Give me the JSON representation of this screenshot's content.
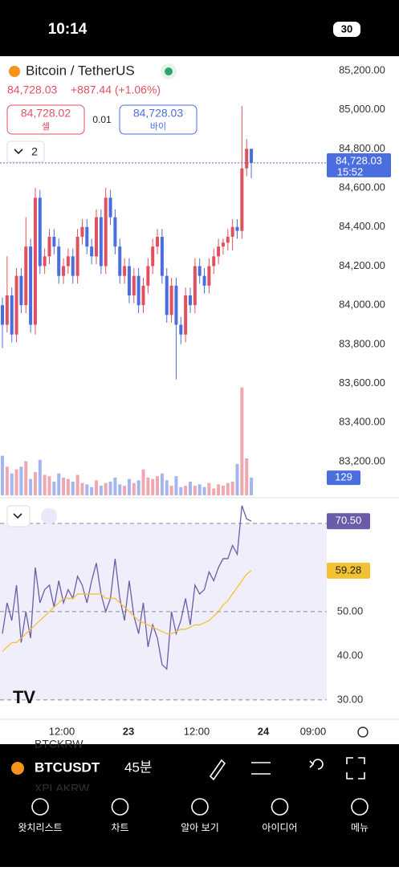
{
  "status": {
    "time": "10:14",
    "battery": "30"
  },
  "header": {
    "symbol": "Bitcoin / TetherUS",
    "price": "84,728.03",
    "change": "+887.44 (+1.06%)"
  },
  "order": {
    "sell_price": "84,728.02",
    "sell_label": "셀",
    "spread": "0.01",
    "buy_price": "84,728.03",
    "buy_label": "바이"
  },
  "indicator_count": "2",
  "time_labels": [
    "12:00",
    "23",
    "12:00",
    "24",
    "09:00"
  ],
  "toolbar": {
    "symbol": "BTCUSDT",
    "interval": "45분",
    "ghost_1": "BTCKRW",
    "ghost_2": "XPLAKRW"
  },
  "tabs": [
    "왓치리스트",
    "차트",
    "알아 보기",
    "아이디어",
    "메뉴"
  ],
  "chart_data": [
    {
      "type": "candlestick",
      "up_color": "#e0515f",
      "down_color": "#4a6ee0",
      "ylim": [
        83015,
        85274
      ],
      "yticks": [
        {
          "value": 83200,
          "label": "83,200.00"
        },
        {
          "value": 83400,
          "label": "83,400.00"
        },
        {
          "value": 83600,
          "label": "83,600.00"
        },
        {
          "value": 83800,
          "label": "83,800.00"
        },
        {
          "value": 84000,
          "label": "84,000.00"
        },
        {
          "value": 84200,
          "label": "84,200.00"
        },
        {
          "value": 84400,
          "label": "84,400.00"
        },
        {
          "value": 84600,
          "label": "84,600.00"
        },
        {
          "value": 84800,
          "label": "84,800.00"
        },
        {
          "value": 85000,
          "label": "85,000.00"
        },
        {
          "value": 85200,
          "label": "85,200.00"
        }
      ],
      "open": [
        84000,
        83900,
        84050,
        83850,
        84150,
        84000,
        84300,
        83900,
        84550,
        84200,
        84250,
        84350,
        84300,
        84150,
        84200,
        84250,
        84150,
        84350,
        84400,
        84300,
        84250,
        84450,
        84200,
        84550,
        84450,
        84300,
        84150,
        84200,
        84050,
        84150,
        84000,
        84100,
        84200,
        84300,
        84350,
        84150,
        83950,
        84100,
        83900,
        83850,
        84050,
        84000,
        84200,
        84150,
        84100,
        84200,
        84250,
        84300,
        84320,
        84350,
        84400,
        84380,
        84700,
        84800
      ],
      "high": [
        84040,
        84250,
        84090,
        84190,
        84190,
        84450,
        84340,
        84600,
        84590,
        84290,
        84390,
        84390,
        84340,
        84240,
        84290,
        84290,
        84390,
        84440,
        84440,
        84340,
        84490,
        84490,
        84600,
        84590,
        84490,
        84340,
        84240,
        84240,
        84190,
        84190,
        84140,
        84240,
        84340,
        84390,
        84390,
        84190,
        84140,
        84140,
        83940,
        84090,
        84090,
        84240,
        84240,
        84190,
        84240,
        84290,
        84340,
        84340,
        84390,
        84440,
        84440,
        85020,
        84850,
        84800
      ],
      "low": [
        83780,
        83860,
        83810,
        83810,
        83960,
        83960,
        83860,
        83850,
        84160,
        84160,
        84210,
        84260,
        84110,
        84110,
        84160,
        84110,
        84110,
        84310,
        84260,
        84210,
        84210,
        84160,
        84160,
        84410,
        84260,
        84110,
        84110,
        84010,
        84010,
        83960,
        83960,
        84060,
        84160,
        84260,
        84110,
        83910,
        83910,
        83620,
        83800,
        83810,
        83960,
        83960,
        84110,
        84060,
        84060,
        84160,
        84210,
        84260,
        84280,
        84280,
        84340,
        84340,
        84660,
        84650
      ],
      "close": [
        83900,
        84050,
        83850,
        84150,
        84000,
        84300,
        83900,
        84550,
        84200,
        84250,
        84350,
        84300,
        84150,
        84200,
        84250,
        84150,
        84350,
        84400,
        84300,
        84250,
        84450,
        84200,
        84550,
        84450,
        84300,
        84150,
        84200,
        84050,
        84150,
        84000,
        84100,
        84200,
        84300,
        84350,
        84150,
        83950,
        84100,
        83900,
        83850,
        84050,
        84000,
        84200,
        84150,
        84100,
        84200,
        84250,
        84300,
        84320,
        84350,
        84400,
        84380,
        84700,
        84800,
        84728.03
      ],
      "last_price_label": "84,728.03",
      "countdown": "15:52"
    },
    {
      "type": "bar",
      "ylim": [
        0,
        800
      ],
      "values": [
        290,
        210,
        160,
        190,
        210,
        250,
        120,
        170,
        260,
        150,
        140,
        100,
        160,
        130,
        120,
        100,
        150,
        90,
        80,
        60,
        110,
        70,
        90,
        100,
        130,
        80,
        70,
        120,
        90,
        110,
        190,
        130,
        120,
        140,
        160,
        110,
        70,
        140,
        60,
        70,
        100,
        70,
        80,
        60,
        90,
        50,
        80,
        70,
        90,
        100,
        230,
        790,
        270,
        129
      ]
    },
    {
      "type": "line",
      "ylim": [
        25.8,
        74.9
      ],
      "yticks": [
        {
          "value": 30,
          "label": "30.00"
        },
        {
          "value": 40,
          "label": "40.00"
        },
        {
          "value": 50,
          "label": "50.00"
        }
      ],
      "levels": [
        70,
        50,
        30
      ],
      "series": [
        {
          "color": "#6a5ca8",
          "values": [
            45,
            52,
            48,
            56,
            43,
            50,
            44,
            60,
            52,
            55,
            56,
            51,
            57,
            52,
            55,
            53,
            58,
            56,
            52,
            57,
            61,
            54,
            50,
            53,
            62,
            53,
            48,
            57,
            49,
            45,
            52,
            42,
            47,
            44,
            38,
            37,
            50,
            45,
            48,
            53,
            47,
            56,
            54,
            55,
            59,
            57,
            60,
            62,
            62,
            65,
            63,
            74,
            71,
            70.5
          ],
          "last_label": "70.50"
        },
        {
          "color": "#f2c233",
          "values": [
            41,
            42,
            43,
            43,
            44,
            45,
            46,
            47,
            48,
            49,
            50,
            51,
            52,
            53,
            53,
            53,
            54,
            54,
            54,
            54,
            54,
            54,
            53,
            53,
            53,
            52,
            51,
            50,
            49,
            48,
            47.5,
            47,
            46.5,
            46,
            45.5,
            45,
            45,
            45.5,
            46,
            46,
            46.5,
            47,
            47,
            47.5,
            48,
            49,
            50,
            51.5,
            52.5,
            54,
            55.5,
            57,
            58.5,
            59.28
          ],
          "last_label": "59.28"
        }
      ]
    }
  ]
}
